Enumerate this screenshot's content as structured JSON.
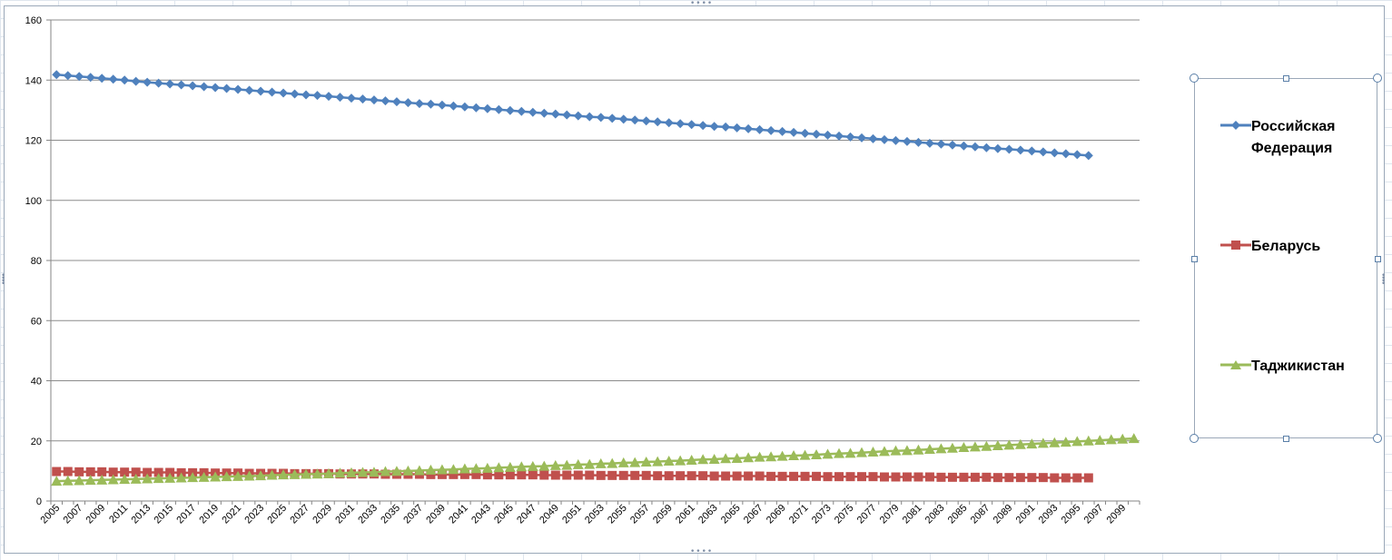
{
  "chart_data": {
    "type": "line",
    "title": "",
    "xlabel": "",
    "ylabel": "",
    "ylim": [
      0,
      160
    ],
    "yticks": [
      0,
      20,
      40,
      60,
      80,
      100,
      120,
      140,
      160
    ],
    "x_start": 2005,
    "x_end": 2100,
    "x_tick_labels": [
      "2005",
      "2007",
      "2009",
      "2011",
      "2013",
      "2015",
      "2017",
      "2019",
      "2021",
      "2023",
      "2025",
      "2027",
      "2029",
      "2031",
      "2033",
      "2035",
      "2037",
      "2039",
      "2041",
      "2043",
      "2045",
      "2047",
      "2049",
      "2051",
      "2053",
      "2055",
      "2057",
      "2059",
      "2061",
      "2063",
      "2065",
      "2067",
      "2069",
      "2071",
      "2073",
      "2075",
      "2077",
      "2079",
      "2081",
      "2083",
      "2085",
      "2087",
      "2089",
      "2091",
      "2093",
      "2095",
      "2097",
      "2099"
    ],
    "grid": true,
    "legend_position": "right",
    "series": [
      {
        "name": "Российская Федерация",
        "color": "#4f81bd",
        "marker": "diamond",
        "x_from": 2005,
        "x_to": 2096,
        "values": [
          141.8,
          141.5,
          141.2,
          140.9,
          140.6,
          140.3,
          140.0,
          139.6,
          139.3,
          139.0,
          138.7,
          138.4,
          138.1,
          137.8,
          137.5,
          137.2,
          136.9,
          136.6,
          136.3,
          136.0,
          135.7,
          135.4,
          135.1,
          134.9,
          134.6,
          134.3,
          134.0,
          133.7,
          133.4,
          133.1,
          132.8,
          132.5,
          132.2,
          132.0,
          131.7,
          131.4,
          131.1,
          130.8,
          130.5,
          130.2,
          129.9,
          129.6,
          129.3,
          129.0,
          128.7,
          128.4,
          128.1,
          127.8,
          127.6,
          127.3,
          127.0,
          126.7,
          126.4,
          126.1,
          125.8,
          125.5,
          125.2,
          124.9,
          124.6,
          124.4,
          124.1,
          123.8,
          123.5,
          123.2,
          122.9,
          122.6,
          122.3,
          122.0,
          121.7,
          121.4,
          121.1,
          120.8,
          120.5,
          120.2,
          119.9,
          119.6,
          119.3,
          119.0,
          118.7,
          118.4,
          118.1,
          117.8,
          117.5,
          117.2,
          117.0,
          116.7,
          116.4,
          116.1,
          115.8,
          115.5,
          115.2,
          114.9
        ]
      },
      {
        "name": "Беларусь",
        "color": "#c0504d",
        "marker": "square",
        "x_from": 2005,
        "x_to": 2096,
        "values": [
          9.8,
          9.8,
          9.7,
          9.7,
          9.7,
          9.6,
          9.6,
          9.6,
          9.5,
          9.5,
          9.5,
          9.4,
          9.4,
          9.4,
          9.3,
          9.3,
          9.3,
          9.2,
          9.2,
          9.2,
          9.2,
          9.1,
          9.1,
          9.1,
          9.1,
          9.0,
          9.0,
          9.0,
          9.0,
          8.9,
          8.9,
          8.9,
          8.9,
          8.8,
          8.8,
          8.8,
          8.8,
          8.8,
          8.7,
          8.7,
          8.7,
          8.7,
          8.7,
          8.6,
          8.6,
          8.6,
          8.6,
          8.6,
          8.5,
          8.5,
          8.5,
          8.5,
          8.5,
          8.4,
          8.4,
          8.4,
          8.4,
          8.4,
          8.3,
          8.3,
          8.3,
          8.3,
          8.3,
          8.2,
          8.2,
          8.2,
          8.2,
          8.2,
          8.1,
          8.1,
          8.1,
          8.1,
          8.1,
          8.0,
          8.0,
          8.0,
          8.0,
          8.0,
          7.9,
          7.9,
          7.9,
          7.9,
          7.9,
          7.8,
          7.8,
          7.8,
          7.8,
          7.8,
          7.7,
          7.7,
          7.7,
          7.7
        ]
      },
      {
        "name": "Таджикистан",
        "color": "#9bbb59",
        "marker": "triangle",
        "x_from": 2005,
        "x_to": 2100,
        "values": [
          6.6,
          6.7,
          6.8,
          6.9,
          7.0,
          7.1,
          7.2,
          7.3,
          7.4,
          7.5,
          7.6,
          7.7,
          7.8,
          7.9,
          8.0,
          8.1,
          8.2,
          8.3,
          8.4,
          8.6,
          8.7,
          8.8,
          8.9,
          9.0,
          9.1,
          9.3,
          9.4,
          9.5,
          9.6,
          9.8,
          9.9,
          10.0,
          10.1,
          10.3,
          10.4,
          10.5,
          10.7,
          10.8,
          10.9,
          11.1,
          11.2,
          11.4,
          11.5,
          11.6,
          11.8,
          11.9,
          12.1,
          12.2,
          12.4,
          12.5,
          12.7,
          12.8,
          13.0,
          13.1,
          13.3,
          13.4,
          13.6,
          13.8,
          13.9,
          14.1,
          14.2,
          14.4,
          14.6,
          14.7,
          14.9,
          15.1,
          15.2,
          15.4,
          15.6,
          15.8,
          15.9,
          16.1,
          16.3,
          16.5,
          16.7,
          16.8,
          17.0,
          17.2,
          17.4,
          17.6,
          17.8,
          18.0,
          18.2,
          18.4,
          18.6,
          18.8,
          19.0,
          19.2,
          19.4,
          19.6,
          19.8,
          20.0,
          20.2,
          20.4,
          20.6,
          20.8
        ]
      }
    ]
  }
}
